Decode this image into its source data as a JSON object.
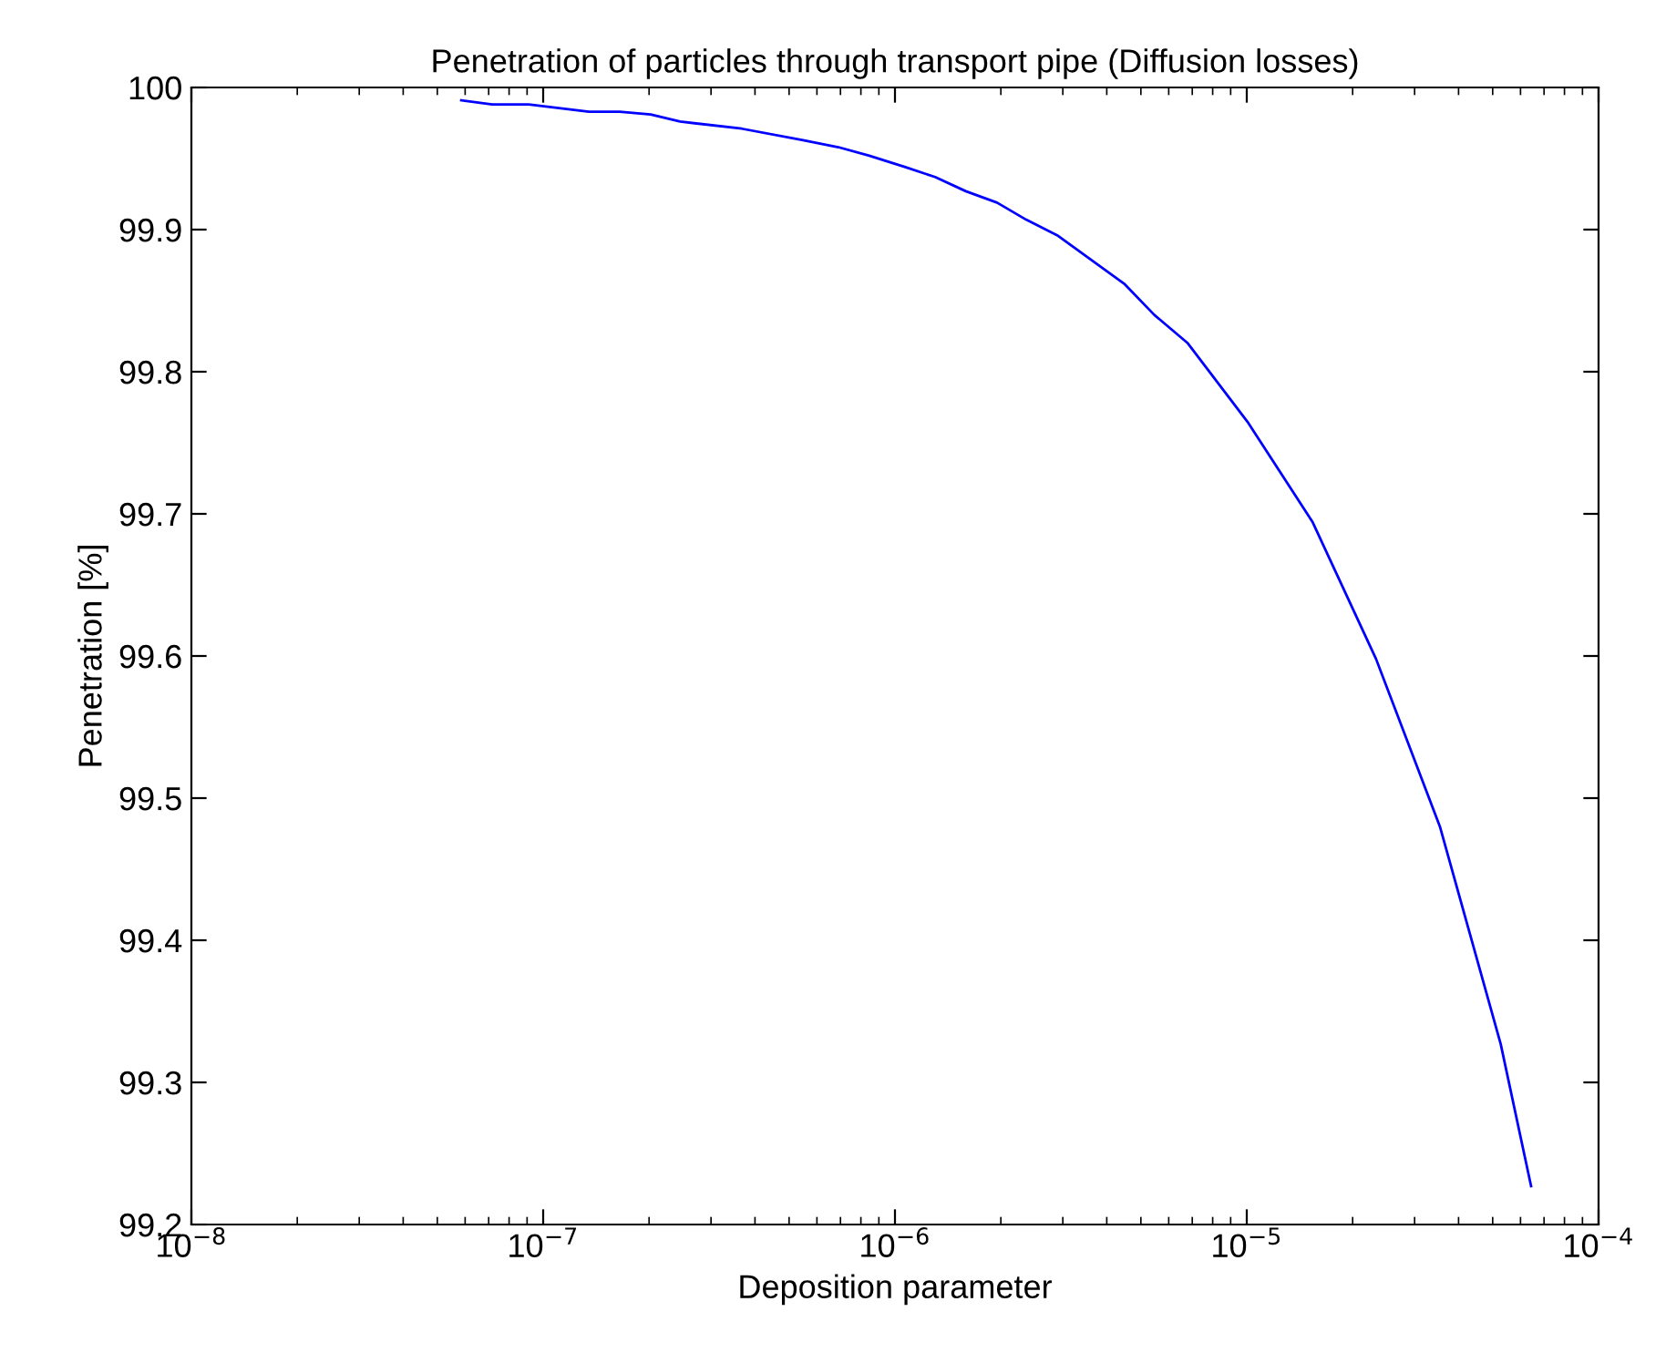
{
  "chart_data": {
    "type": "line",
    "title": "Penetration of particles through transport pipe (Diffusion losses)",
    "xlabel": "Deposition parameter",
    "ylabel": "Penetration [%]",
    "log": "x",
    "x": [
      5.85e-08,
      7.16e-08,
      9.1e-08,
      1.35e-07,
      1.65e-07,
      2.02e-07,
      2.45e-07,
      3.67e-07,
      5.44e-07,
      6.9e-07,
      8.45e-07,
      1.07e-06,
      1.3e-06,
      1.59e-06,
      1.95e-06,
      2.36e-06,
      2.89e-06,
      4.48e-06,
      5.46e-06,
      6.8e-06,
      1.01e-05,
      1.54e-05,
      2.33e-05,
      3.54e-05,
      5.27e-05,
      6.43e-05
    ],
    "series": [
      {
        "color": "#0000ff",
        "values": [
          99.991,
          99.988,
          99.988,
          99.983,
          99.983,
          99.981,
          99.976,
          99.971,
          99.963,
          99.958,
          99.952,
          99.944,
          99.937,
          99.927,
          99.919,
          99.907,
          99.896,
          99.862,
          99.84,
          99.82,
          99.764,
          99.694,
          99.598,
          99.48,
          99.327,
          99.227
        ]
      }
    ],
    "xlim": [
      1e-08,
      0.0001
    ],
    "xticks": [
      {
        "value": 1e-08,
        "label": "10$^{−8}$"
      },
      {
        "value": 1e-07,
        "label": "10$^{−7}$"
      },
      {
        "value": 1e-06,
        "label": "10$^{−6}$"
      },
      {
        "value": 1e-05,
        "label": "10$^{−5}$"
      },
      {
        "value": 0.0001,
        "label": "10$^{−4}$"
      }
    ],
    "ylim": [
      99.2,
      100
    ],
    "yticks": [
      99.2,
      99.3,
      99.4,
      99.5,
      99.6,
      99.7,
      99.8,
      99.9,
      100
    ],
    "grid": false,
    "legend": false,
    "marker": "none",
    "line_style": "solid"
  }
}
